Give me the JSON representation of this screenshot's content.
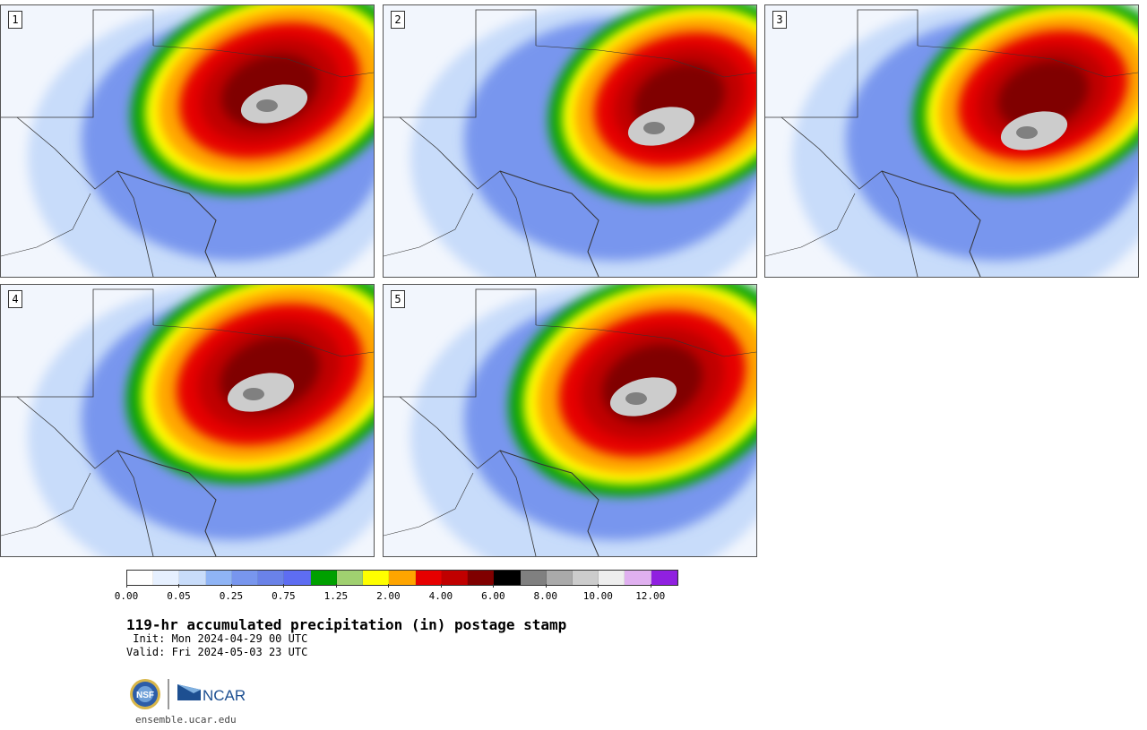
{
  "panels": [
    {
      "label": "1",
      "rain_center": [
        300,
        95
      ],
      "rain_extent": [
        160,
        110
      ],
      "extreme_center": [
        305,
        110
      ]
    },
    {
      "label": "2",
      "rain_center": [
        330,
        105
      ],
      "rain_extent": [
        150,
        110
      ],
      "extreme_center": [
        310,
        135
      ]
    },
    {
      "label": "3",
      "rain_center": [
        310,
        100
      ],
      "rain_extent": [
        150,
        105
      ],
      "extreme_center": [
        300,
        140
      ]
    },
    {
      "label": "4",
      "rain_center": [
        300,
        100
      ],
      "rain_extent": [
        165,
        115
      ],
      "extreme_center": [
        290,
        120
      ]
    },
    {
      "label": "5",
      "rain_center": [
        300,
        110
      ],
      "rain_extent": [
        165,
        120
      ],
      "extreme_center": [
        290,
        125
      ]
    }
  ],
  "colorbar": {
    "colors": [
      "#ffffff",
      "#e6f0ff",
      "#c8dcfa",
      "#8fb4f5",
      "#7896ee",
      "#6a82e8",
      "#5e6df2",
      "#00a000",
      "#a0d070",
      "#ffff00",
      "#ffa500",
      "#e60000",
      "#c00000",
      "#800000",
      "#000000",
      "#808080",
      "#aaaaaa",
      "#cccccc",
      "#eeeeee",
      "#e0b0f0",
      "#9020e0"
    ],
    "tick_labels": [
      "0.00",
      "0.05",
      "0.25",
      "0.75",
      "1.25",
      "2.00",
      "4.00",
      "6.00",
      "8.00",
      "10.00",
      "12.00"
    ]
  },
  "title": "119-hr accumulated precipitation (in) postage stamp",
  "init": " Init: Mon 2024-04-29 00 UTC",
  "valid": "Valid: Fri 2024-05-03 23 UTC",
  "logos": {
    "nsf": "NSF",
    "ncar": "NCAR"
  },
  "site": "ensemble.ucar.edu"
}
